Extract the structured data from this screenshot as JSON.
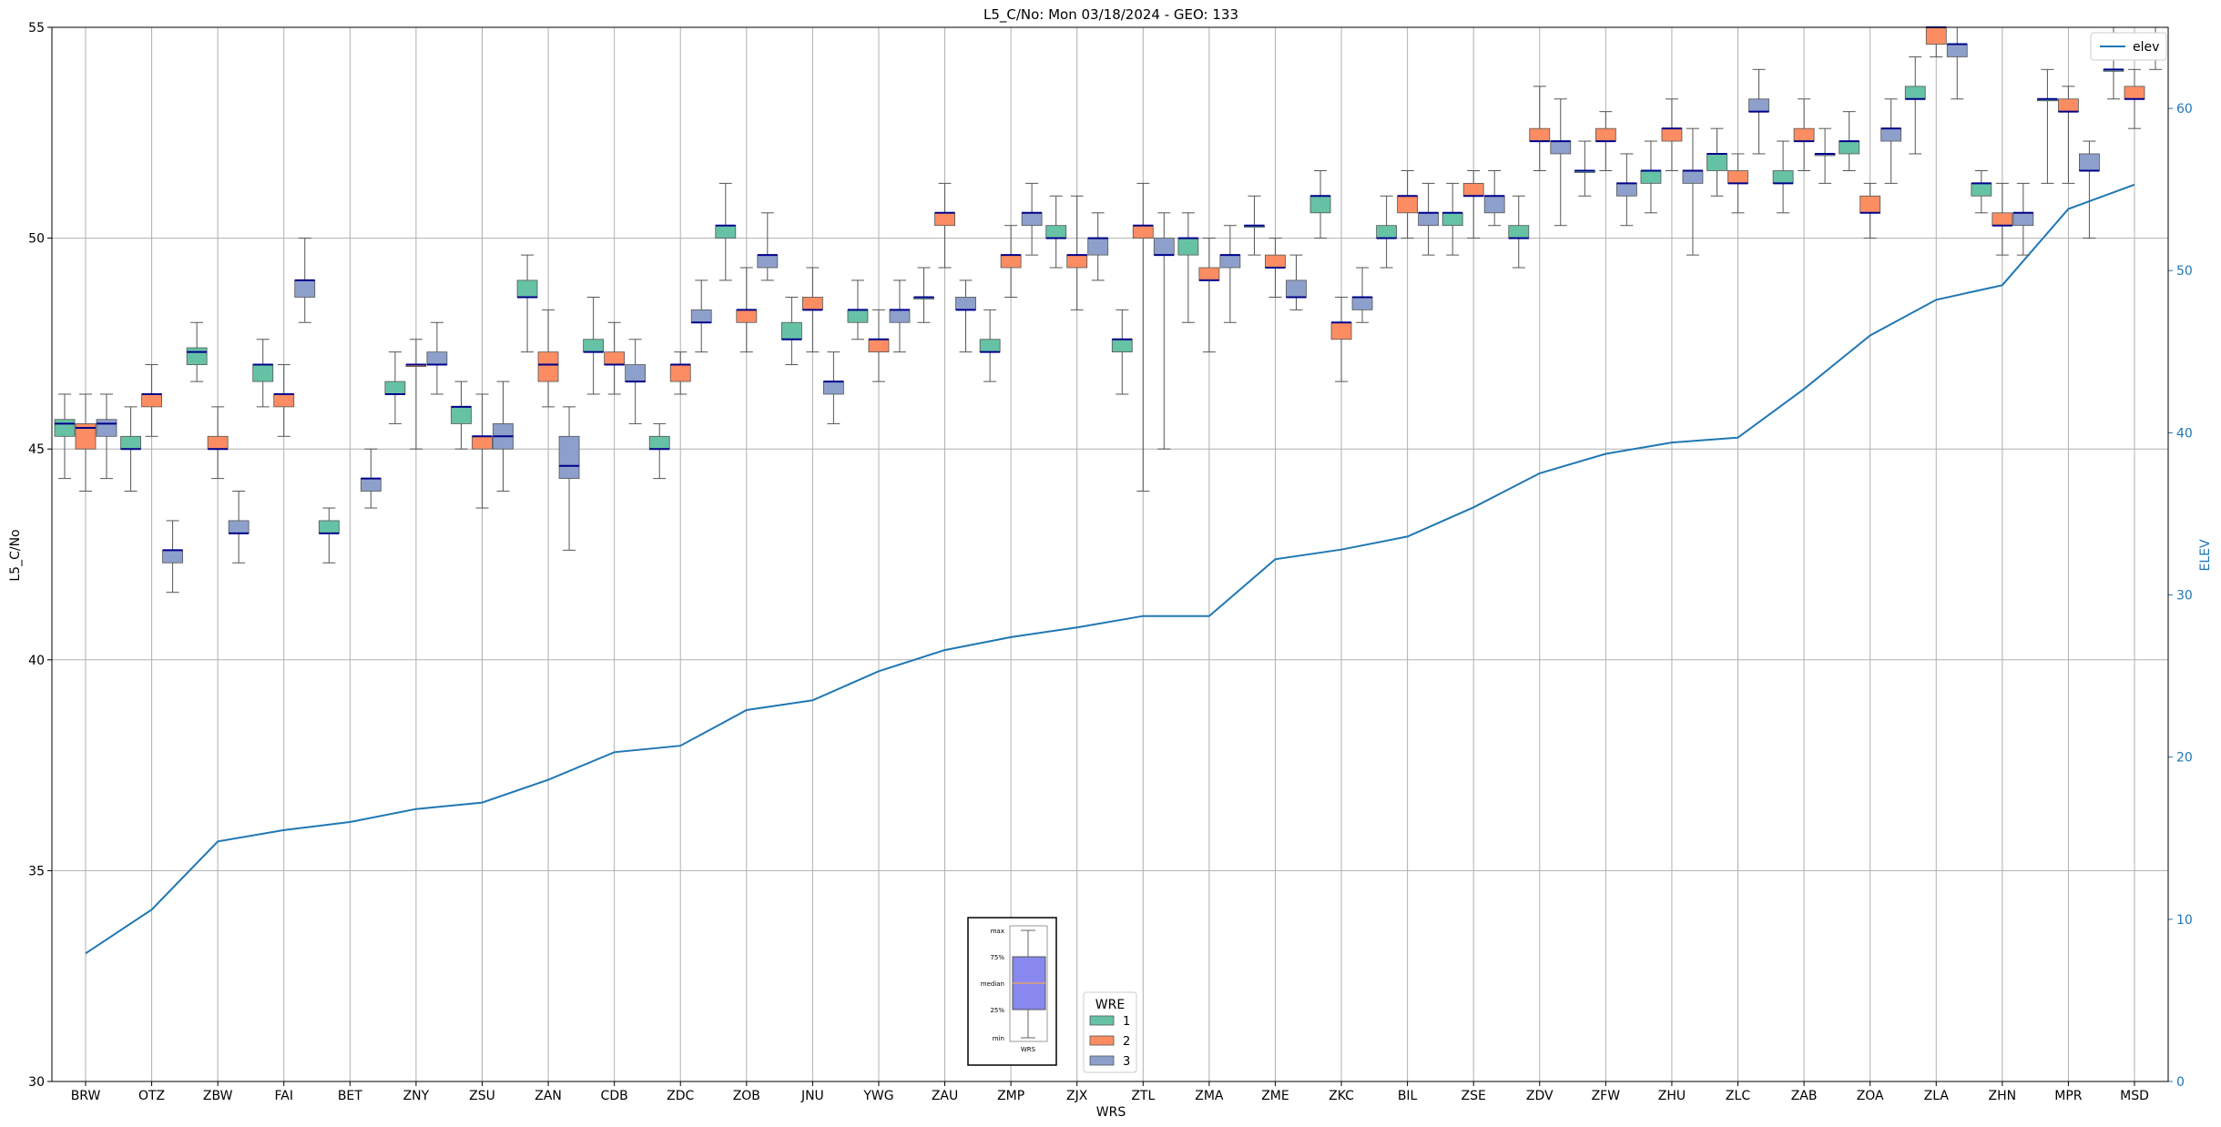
{
  "chart_data": {
    "type": "box",
    "title": "L5_C/No: Mon 03/18/2024 - GEO: 133",
    "xlabel": "WRS",
    "ylabel": "L5_C/No",
    "y2label": "ELEV",
    "ylim": [
      30,
      55
    ],
    "y2lim": [
      0,
      65
    ],
    "yticks": [
      30,
      35,
      40,
      45,
      50,
      55
    ],
    "y2ticks": [
      0,
      10,
      20,
      30,
      40,
      50,
      60
    ],
    "grid": true,
    "categories": [
      "BRW",
      "OTZ",
      "ZBW",
      "FAI",
      "BET",
      "ZNY",
      "ZSU",
      "ZAN",
      "CDB",
      "ZDC",
      "ZOB",
      "JNU",
      "YWG",
      "ZAU",
      "ZMP",
      "ZJX",
      "ZTL",
      "ZMA",
      "ZME",
      "ZKC",
      "BIL",
      "ZSE",
      "ZDV",
      "ZFW",
      "ZHU",
      "ZLC",
      "ZAB",
      "ZOA",
      "ZLA",
      "ZHN",
      "MPR",
      "MSD"
    ],
    "wre_colors": {
      "1": "#66c2a5",
      "2": "#fc8d62",
      "3": "#8da0cb"
    },
    "median_color": "#00008b",
    "boxes": [
      {
        "station": "BRW",
        "wre": 1,
        "min": 44.3,
        "q1": 45.3,
        "median": 45.6,
        "q3": 45.7,
        "max": 46.3
      },
      {
        "station": "BRW",
        "wre": 2,
        "min": 44.0,
        "q1": 45.0,
        "median": 45.5,
        "q3": 45.6,
        "max": 46.3
      },
      {
        "station": "BRW",
        "wre": 3,
        "min": 44.3,
        "q1": 45.3,
        "median": 45.6,
        "q3": 45.7,
        "max": 46.3
      },
      {
        "station": "OTZ",
        "wre": 1,
        "min": 44.0,
        "q1": 45.0,
        "median": 45.0,
        "q3": 45.3,
        "max": 46.0
      },
      {
        "station": "OTZ",
        "wre": 2,
        "min": 45.3,
        "q1": 46.0,
        "median": 46.3,
        "q3": 46.3,
        "max": 47.0
      },
      {
        "station": "OTZ",
        "wre": 3,
        "min": 41.6,
        "q1": 42.3,
        "median": 42.6,
        "q3": 42.6,
        "max": 43.3
      },
      {
        "station": "ZBW",
        "wre": 1,
        "min": 46.6,
        "q1": 47.0,
        "median": 47.3,
        "q3": 47.4,
        "max": 48.0
      },
      {
        "station": "ZBW",
        "wre": 2,
        "min": 44.3,
        "q1": 45.0,
        "median": 45.0,
        "q3": 45.3,
        "max": 46.0
      },
      {
        "station": "ZBW",
        "wre": 3,
        "min": 42.3,
        "q1": 43.0,
        "median": 43.0,
        "q3": 43.3,
        "max": 44.0
      },
      {
        "station": "FAI",
        "wre": 1,
        "min": 46.0,
        "q1": 46.6,
        "median": 47.0,
        "q3": 47.0,
        "max": 47.6
      },
      {
        "station": "FAI",
        "wre": 2,
        "min": 45.3,
        "q1": 46.0,
        "median": 46.3,
        "q3": 46.3,
        "max": 47.0
      },
      {
        "station": "FAI",
        "wre": 3,
        "min": 48.0,
        "q1": 48.6,
        "median": 49.0,
        "q3": 49.0,
        "max": 50.0
      },
      {
        "station": "BET",
        "wre": 1,
        "min": 42.3,
        "q1": 43.0,
        "median": 43.0,
        "q3": 43.3,
        "max": 43.6
      },
      {
        "station": "BET",
        "wre": 3,
        "min": 43.6,
        "q1": 44.0,
        "median": 44.3,
        "q3": 44.3,
        "max": 45.0
      },
      {
        "station": "ZNY",
        "wre": 1,
        "min": 45.6,
        "q1": 46.3,
        "median": 46.3,
        "q3": 46.6,
        "max": 47.3
      },
      {
        "station": "ZNY",
        "wre": 2,
        "min": 45.0,
        "q1": 47.0,
        "median": 47.0,
        "q3": 47.0,
        "max": 47.6
      },
      {
        "station": "ZNY",
        "wre": 3,
        "min": 46.3,
        "q1": 47.0,
        "median": 47.0,
        "q3": 47.3,
        "max": 48.0
      },
      {
        "station": "ZSU",
        "wre": 1,
        "min": 45.0,
        "q1": 45.6,
        "median": 46.0,
        "q3": 46.0,
        "max": 46.6
      },
      {
        "station": "ZSU",
        "wre": 2,
        "min": 43.6,
        "q1": 45.0,
        "median": 45.3,
        "q3": 45.3,
        "max": 46.3
      },
      {
        "station": "ZSU",
        "wre": 3,
        "min": 44.0,
        "q1": 45.0,
        "median": 45.3,
        "q3": 45.6,
        "max": 46.6
      },
      {
        "station": "ZAN",
        "wre": 1,
        "min": 47.3,
        "q1": 48.6,
        "median": 48.6,
        "q3": 49.0,
        "max": 49.6
      },
      {
        "station": "ZAN",
        "wre": 2,
        "min": 46.0,
        "q1": 46.6,
        "median": 47.0,
        "q3": 47.3,
        "max": 48.3
      },
      {
        "station": "ZAN",
        "wre": 3,
        "min": 42.6,
        "q1": 44.3,
        "median": 44.6,
        "q3": 45.3,
        "max": 46.0
      },
      {
        "station": "CDB",
        "wre": 1,
        "min": 46.3,
        "q1": 47.3,
        "median": 47.3,
        "q3": 47.6,
        "max": 48.6
      },
      {
        "station": "CDB",
        "wre": 2,
        "min": 46.3,
        "q1": 47.0,
        "median": 47.0,
        "q3": 47.3,
        "max": 48.0
      },
      {
        "station": "CDB",
        "wre": 3,
        "min": 45.6,
        "q1": 46.6,
        "median": 46.6,
        "q3": 47.0,
        "max": 47.6
      },
      {
        "station": "ZDC",
        "wre": 1,
        "min": 44.3,
        "q1": 45.0,
        "median": 45.0,
        "q3": 45.3,
        "max": 45.6
      },
      {
        "station": "ZDC",
        "wre": 2,
        "min": 46.3,
        "q1": 46.6,
        "median": 47.0,
        "q3": 47.0,
        "max": 47.3
      },
      {
        "station": "ZDC",
        "wre": 3,
        "min": 47.3,
        "q1": 48.0,
        "median": 48.0,
        "q3": 48.3,
        "max": 49.0
      },
      {
        "station": "ZOB",
        "wre": 1,
        "min": 49.0,
        "q1": 50.0,
        "median": 50.3,
        "q3": 50.3,
        "max": 51.3
      },
      {
        "station": "ZOB",
        "wre": 2,
        "min": 47.3,
        "q1": 48.0,
        "median": 48.3,
        "q3": 48.3,
        "max": 49.3
      },
      {
        "station": "ZOB",
        "wre": 3,
        "min": 49.0,
        "q1": 49.3,
        "median": 49.6,
        "q3": 49.6,
        "max": 50.6
      },
      {
        "station": "JNU",
        "wre": 1,
        "min": 47.0,
        "q1": 47.6,
        "median": 47.6,
        "q3": 48.0,
        "max": 48.6
      },
      {
        "station": "JNU",
        "wre": 2,
        "min": 47.3,
        "q1": 48.3,
        "median": 48.3,
        "q3": 48.6,
        "max": 49.3
      },
      {
        "station": "JNU",
        "wre": 3,
        "min": 45.6,
        "q1": 46.3,
        "median": 46.6,
        "q3": 46.6,
        "max": 47.3
      },
      {
        "station": "YWG",
        "wre": 1,
        "min": 47.6,
        "q1": 48.0,
        "median": 48.3,
        "q3": 48.3,
        "max": 49.0
      },
      {
        "station": "YWG",
        "wre": 2,
        "min": 46.6,
        "q1": 47.3,
        "median": 47.6,
        "q3": 47.6,
        "max": 48.3
      },
      {
        "station": "YWG",
        "wre": 3,
        "min": 47.3,
        "q1": 48.0,
        "median": 48.3,
        "q3": 48.3,
        "max": 49.0
      },
      {
        "station": "ZAU",
        "wre": 1,
        "min": 48.0,
        "q1": 48.6,
        "median": 48.6,
        "q3": 48.6,
        "max": 49.3
      },
      {
        "station": "ZAU",
        "wre": 2,
        "min": 49.3,
        "q1": 50.3,
        "median": 50.6,
        "q3": 50.6,
        "max": 51.3
      },
      {
        "station": "ZAU",
        "wre": 3,
        "min": 47.3,
        "q1": 48.3,
        "median": 48.3,
        "q3": 48.6,
        "max": 49.0
      },
      {
        "station": "ZMP",
        "wre": 1,
        "min": 46.6,
        "q1": 47.3,
        "median": 47.3,
        "q3": 47.6,
        "max": 48.3
      },
      {
        "station": "ZMP",
        "wre": 2,
        "min": 48.6,
        "q1": 49.3,
        "median": 49.6,
        "q3": 49.6,
        "max": 50.3
      },
      {
        "station": "ZMP",
        "wre": 3,
        "min": 49.6,
        "q1": 50.3,
        "median": 50.6,
        "q3": 50.6,
        "max": 51.3
      },
      {
        "station": "ZJX",
        "wre": 1,
        "min": 49.3,
        "q1": 50.0,
        "median": 50.0,
        "q3": 50.3,
        "max": 51.0
      },
      {
        "station": "ZJX",
        "wre": 2,
        "min": 48.3,
        "q1": 49.3,
        "median": 49.6,
        "q3": 49.6,
        "max": 51.0
      },
      {
        "station": "ZJX",
        "wre": 3,
        "min": 49.0,
        "q1": 49.6,
        "median": 50.0,
        "q3": 50.0,
        "max": 50.6
      },
      {
        "station": "ZTL",
        "wre": 1,
        "min": 46.3,
        "q1": 47.3,
        "median": 47.6,
        "q3": 47.6,
        "max": 48.3
      },
      {
        "station": "ZTL",
        "wre": 2,
        "min": 44.0,
        "q1": 50.0,
        "median": 50.3,
        "q3": 50.3,
        "max": 51.3
      },
      {
        "station": "ZTL",
        "wre": 3,
        "min": 45.0,
        "q1": 49.6,
        "median": 49.6,
        "q3": 50.0,
        "max": 50.6
      },
      {
        "station": "ZMA",
        "wre": 1,
        "min": 48.0,
        "q1": 49.6,
        "median": 50.0,
        "q3": 50.0,
        "max": 50.6
      },
      {
        "station": "ZMA",
        "wre": 2,
        "min": 47.3,
        "q1": 49.0,
        "median": 49.0,
        "q3": 49.3,
        "max": 50.0
      },
      {
        "station": "ZMA",
        "wre": 3,
        "min": 48.0,
        "q1": 49.3,
        "median": 49.6,
        "q3": 49.6,
        "max": 50.3
      },
      {
        "station": "ZME",
        "wre": 1,
        "min": 49.6,
        "q1": 50.3,
        "median": 50.3,
        "q3": 50.3,
        "max": 51.0
      },
      {
        "station": "ZME",
        "wre": 2,
        "min": 48.6,
        "q1": 49.3,
        "median": 49.3,
        "q3": 49.6,
        "max": 50.0
      },
      {
        "station": "ZME",
        "wre": 3,
        "min": 48.3,
        "q1": 48.6,
        "median": 48.6,
        "q3": 49.0,
        "max": 49.6
      },
      {
        "station": "ZKC",
        "wre": 1,
        "min": 50.0,
        "q1": 50.6,
        "median": 51.0,
        "q3": 51.0,
        "max": 51.6
      },
      {
        "station": "ZKC",
        "wre": 2,
        "min": 46.6,
        "q1": 47.6,
        "median": 48.0,
        "q3": 48.0,
        "max": 48.6
      },
      {
        "station": "ZKC",
        "wre": 3,
        "min": 48.0,
        "q1": 48.3,
        "median": 48.6,
        "q3": 48.6,
        "max": 49.3
      },
      {
        "station": "BIL",
        "wre": 1,
        "min": 49.3,
        "q1": 50.0,
        "median": 50.0,
        "q3": 50.3,
        "max": 51.0
      },
      {
        "station": "BIL",
        "wre": 2,
        "min": 50.0,
        "q1": 50.6,
        "median": 51.0,
        "q3": 51.0,
        "max": 51.6
      },
      {
        "station": "BIL",
        "wre": 3,
        "min": 49.6,
        "q1": 50.3,
        "median": 50.6,
        "q3": 50.6,
        "max": 51.3
      },
      {
        "station": "ZSE",
        "wre": 1,
        "min": 49.6,
        "q1": 50.3,
        "median": 50.6,
        "q3": 50.6,
        "max": 51.3
      },
      {
        "station": "ZSE",
        "wre": 2,
        "min": 50.0,
        "q1": 51.0,
        "median": 51.0,
        "q3": 51.3,
        "max": 51.6
      },
      {
        "station": "ZSE",
        "wre": 3,
        "min": 50.3,
        "q1": 50.6,
        "median": 51.0,
        "q3": 51.0,
        "max": 51.6
      },
      {
        "station": "ZDV",
        "wre": 1,
        "min": 49.3,
        "q1": 50.0,
        "median": 50.0,
        "q3": 50.3,
        "max": 51.0
      },
      {
        "station": "ZDV",
        "wre": 2,
        "min": 51.6,
        "q1": 52.3,
        "median": 52.3,
        "q3": 52.6,
        "max": 53.6
      },
      {
        "station": "ZDV",
        "wre": 3,
        "min": 50.3,
        "q1": 52.0,
        "median": 52.3,
        "q3": 52.3,
        "max": 53.3
      },
      {
        "station": "ZFW",
        "wre": 1,
        "min": 51.0,
        "q1": 51.6,
        "median": 51.6,
        "q3": 51.6,
        "max": 52.3
      },
      {
        "station": "ZFW",
        "wre": 2,
        "min": 51.6,
        "q1": 52.3,
        "median": 52.3,
        "q3": 52.6,
        "max": 53.0
      },
      {
        "station": "ZFW",
        "wre": 3,
        "min": 50.3,
        "q1": 51.0,
        "median": 51.3,
        "q3": 51.3,
        "max": 52.0
      },
      {
        "station": "ZHU",
        "wre": 1,
        "min": 50.6,
        "q1": 51.3,
        "median": 51.6,
        "q3": 51.6,
        "max": 52.3
      },
      {
        "station": "ZHU",
        "wre": 2,
        "min": 51.6,
        "q1": 52.3,
        "median": 52.6,
        "q3": 52.6,
        "max": 53.3
      },
      {
        "station": "ZHU",
        "wre": 3,
        "min": 49.6,
        "q1": 51.3,
        "median": 51.6,
        "q3": 51.6,
        "max": 52.6
      },
      {
        "station": "ZLC",
        "wre": 1,
        "min": 51.0,
        "q1": 51.6,
        "median": 52.0,
        "q3": 52.0,
        "max": 52.6
      },
      {
        "station": "ZLC",
        "wre": 2,
        "min": 50.6,
        "q1": 51.3,
        "median": 51.3,
        "q3": 51.6,
        "max": 52.0
      },
      {
        "station": "ZLC",
        "wre": 3,
        "min": 52.0,
        "q1": 53.0,
        "median": 53.0,
        "q3": 53.3,
        "max": 54.0
      },
      {
        "station": "ZAB",
        "wre": 1,
        "min": 50.6,
        "q1": 51.3,
        "median": 51.3,
        "q3": 51.6,
        "max": 52.3
      },
      {
        "station": "ZAB",
        "wre": 2,
        "min": 51.6,
        "q1": 52.3,
        "median": 52.3,
        "q3": 52.6,
        "max": 53.3
      },
      {
        "station": "ZAB",
        "wre": 3,
        "min": 51.3,
        "q1": 52.0,
        "median": 52.0,
        "q3": 52.0,
        "max": 52.6
      },
      {
        "station": "ZOA",
        "wre": 1,
        "min": 51.6,
        "q1": 52.0,
        "median": 52.3,
        "q3": 52.3,
        "max": 53.0
      },
      {
        "station": "ZOA",
        "wre": 2,
        "min": 50.0,
        "q1": 50.6,
        "median": 50.6,
        "q3": 51.0,
        "max": 51.3
      },
      {
        "station": "ZOA",
        "wre": 3,
        "min": 51.3,
        "q1": 52.3,
        "median": 52.6,
        "q3": 52.6,
        "max": 53.3
      },
      {
        "station": "ZLA",
        "wre": 1,
        "min": 52.0,
        "q1": 53.3,
        "median": 53.3,
        "q3": 53.6,
        "max": 54.3
      },
      {
        "station": "ZLA",
        "wre": 2,
        "min": 54.3,
        "q1": 54.6,
        "median": 55.0,
        "q3": 55.0,
        "max": 55.0
      },
      {
        "station": "ZLA",
        "wre": 3,
        "min": 53.3,
        "q1": 54.3,
        "median": 54.6,
        "q3": 54.6,
        "max": 55.0
      },
      {
        "station": "ZHN",
        "wre": 1,
        "min": 50.6,
        "q1": 51.0,
        "median": 51.3,
        "q3": 51.3,
        "max": 51.6
      },
      {
        "station": "ZHN",
        "wre": 2,
        "min": 49.6,
        "q1": 50.3,
        "median": 50.3,
        "q3": 50.6,
        "max": 51.3
      },
      {
        "station": "ZHN",
        "wre": 3,
        "min": 49.6,
        "q1": 50.3,
        "median": 50.6,
        "q3": 50.6,
        "max": 51.3
      },
      {
        "station": "MPR",
        "wre": 1,
        "min": 51.3,
        "q1": 53.3,
        "median": 53.3,
        "q3": 53.3,
        "max": 54.0
      },
      {
        "station": "MPR",
        "wre": 2,
        "min": 51.3,
        "q1": 53.0,
        "median": 53.0,
        "q3": 53.3,
        "max": 53.6
      },
      {
        "station": "MPR",
        "wre": 3,
        "min": 50.0,
        "q1": 51.6,
        "median": 51.6,
        "q3": 52.0,
        "max": 52.3
      },
      {
        "station": "MSD",
        "wre": 1,
        "min": 53.3,
        "q1": 54.0,
        "median": 54.0,
        "q3": 54.0,
        "max": 55.0
      },
      {
        "station": "MSD",
        "wre": 2,
        "min": 52.6,
        "q1": 53.3,
        "median": 53.3,
        "q3": 53.6,
        "max": 54.0
      },
      {
        "station": "MSD",
        "wre": 3,
        "min": 54.0,
        "q1": 54.3,
        "median": 54.6,
        "q3": 54.6,
        "max": 55.0
      }
    ],
    "elev_series": {
      "name": "elev",
      "color": "#1f77b4",
      "values": [
        7.9,
        10.6,
        14.8,
        15.5,
        16.0,
        16.8,
        17.2,
        18.6,
        20.3,
        20.7,
        22.9,
        23.5,
        25.3,
        26.6,
        27.4,
        28.0,
        28.7,
        28.7,
        32.2,
        32.8,
        33.6,
        35.4,
        37.5,
        38.7,
        39.4,
        39.7,
        42.7,
        46.0,
        48.2,
        49.1,
        53.8,
        55.3
      ]
    },
    "legend_elev": {
      "label": "elev",
      "placement": "top-right"
    },
    "legend_wre": {
      "title": "WRE",
      "entries": [
        "1",
        "2",
        "3"
      ],
      "placement": "bottom-center"
    },
    "inset_legend": {
      "labels": [
        "max",
        "75%",
        "median",
        "25%",
        "min"
      ],
      "xtick": "WRS",
      "box_color": "#8888ee",
      "median_color": "#e0a070"
    }
  }
}
